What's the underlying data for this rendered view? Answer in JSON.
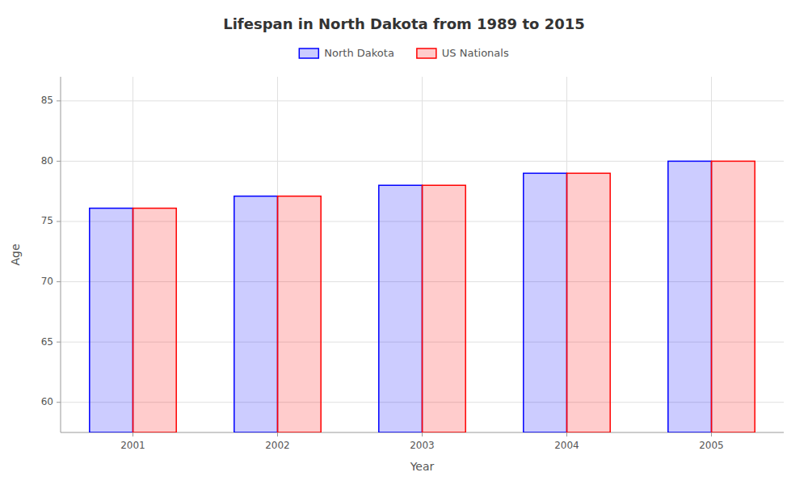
{
  "chart_data": {
    "type": "bar",
    "title": "Lifespan in North Dakota from 1989 to 2015",
    "xlabel": "Year",
    "ylabel": "Age",
    "categories": [
      "2001",
      "2002",
      "2003",
      "2004",
      "2005"
    ],
    "series": [
      {
        "name": "North Dakota",
        "color": "#0000ff",
        "values": [
          76.1,
          77.1,
          78.0,
          79.0,
          80.0
        ]
      },
      {
        "name": "US Nationals",
        "color": "#ff0000",
        "values": [
          76.1,
          77.1,
          78.0,
          79.0,
          80.0
        ]
      }
    ],
    "ylim": [
      57.5,
      87
    ],
    "yticks": [
      60,
      65,
      70,
      75,
      80,
      85
    ],
    "grid": true,
    "legend": "top"
  }
}
